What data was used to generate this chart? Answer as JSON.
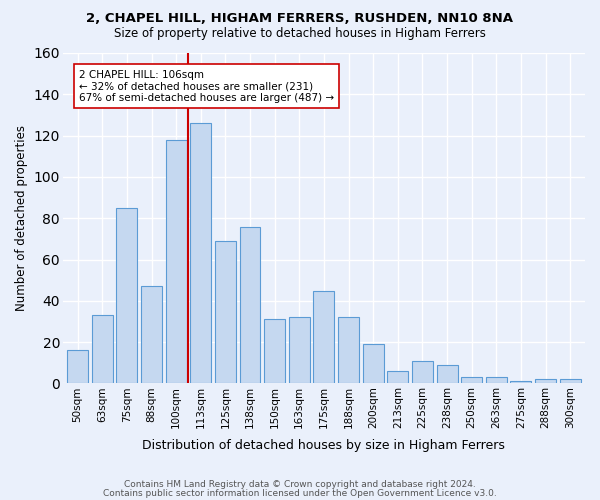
{
  "title1": "2, CHAPEL HILL, HIGHAM FERRERS, RUSHDEN, NN10 8NA",
  "title2": "Size of property relative to detached houses in Higham Ferrers",
  "xlabel": "Distribution of detached houses by size in Higham Ferrers",
  "ylabel": "Number of detached properties",
  "footer1": "Contains HM Land Registry data © Crown copyright and database right 2024.",
  "footer2": "Contains public sector information licensed under the Open Government Licence v3.0.",
  "bar_labels": [
    "50sqm",
    "63sqm",
    "75sqm",
    "88sqm",
    "100sqm",
    "113sqm",
    "125sqm",
    "138sqm",
    "150sqm",
    "163sqm",
    "175sqm",
    "188sqm",
    "200sqm",
    "213sqm",
    "225sqm",
    "238sqm",
    "250sqm",
    "263sqm",
    "275sqm",
    "288sqm",
    "300sqm"
  ],
  "bar_values": [
    16,
    33,
    85,
    47,
    118,
    126,
    69,
    76,
    31,
    32,
    45,
    32,
    19,
    6,
    11,
    9,
    3,
    3,
    1,
    2,
    2
  ],
  "bar_color": "#c5d8f0",
  "bar_edge_color": "#5b9bd5",
  "background_color": "#eaf0fb",
  "grid_color": "#ffffff",
  "vline_x_index": 4.5,
  "vline_color": "#cc0000",
  "annotation_text": "2 CHAPEL HILL: 106sqm\n← 32% of detached houses are smaller (231)\n67% of semi-detached houses are larger (487) →",
  "annotation_box_color": "#ffffff",
  "annotation_box_edge": "#cc0000",
  "ylim": [
    0,
    160
  ],
  "yticks": [
    0,
    20,
    40,
    60,
    80,
    100,
    120,
    140,
    160
  ],
  "bin_width": 0.85
}
